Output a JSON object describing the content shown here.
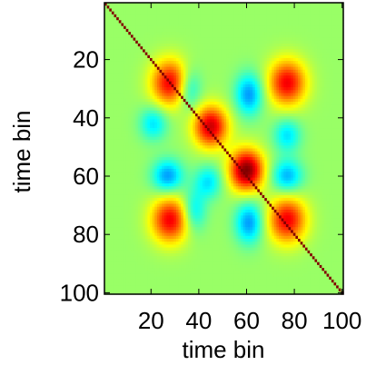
{
  "chart_data": {
    "type": "heatmap",
    "title": "",
    "xlabel": "time bin",
    "ylabel": "time bin",
    "xlim": [
      1,
      100
    ],
    "ylim": [
      1,
      100
    ],
    "y_reversed": true,
    "xticks": [
      20,
      40,
      60,
      80,
      100
    ],
    "yticks": [
      20,
      40,
      60,
      80,
      100
    ],
    "colormap": "jet",
    "value_range": [
      -1,
      1
    ],
    "background_value": 0.05,
    "diagonal_value": 1.0,
    "blobs": [
      {
        "x": 28,
        "y": 28,
        "sx": 5.5,
        "sy": 5.5,
        "value": 0.72
      },
      {
        "x": 77,
        "y": 28,
        "sx": 5.5,
        "sy": 5.5,
        "value": 0.72
      },
      {
        "x": 28,
        "y": 75,
        "sx": 5.5,
        "sy": 5.5,
        "value": 0.72
      },
      {
        "x": 77,
        "y": 75,
        "sx": 5.5,
        "sy": 5.5,
        "value": 0.72
      },
      {
        "x": 45,
        "y": 43,
        "sx": 5,
        "sy": 5,
        "value": 0.8
      },
      {
        "x": 60,
        "y": 58,
        "sx": 5,
        "sy": 5,
        "value": 0.95
      },
      {
        "x": 36,
        "y": 30,
        "sx": 3.5,
        "sy": 5,
        "value": -0.35
      },
      {
        "x": 61,
        "y": 32,
        "sx": 4,
        "sy": 5,
        "value": -0.5
      },
      {
        "x": 21,
        "y": 42,
        "sx": 4,
        "sy": 4,
        "value": -0.35
      },
      {
        "x": 77,
        "y": 46,
        "sx": 4,
        "sy": 4,
        "value": -0.35
      },
      {
        "x": 27,
        "y": 60,
        "sx": 4.5,
        "sy": 4,
        "value": -0.5
      },
      {
        "x": 77,
        "y": 60,
        "sx": 4.5,
        "sy": 4,
        "value": -0.45
      },
      {
        "x": 44,
        "y": 62,
        "sx": 4,
        "sy": 4,
        "value": -0.35
      },
      {
        "x": 38,
        "y": 72,
        "sx": 3.5,
        "sy": 5,
        "value": -0.35
      },
      {
        "x": 61,
        "y": 76,
        "sx": 4,
        "sy": 5,
        "value": -0.5
      }
    ]
  }
}
